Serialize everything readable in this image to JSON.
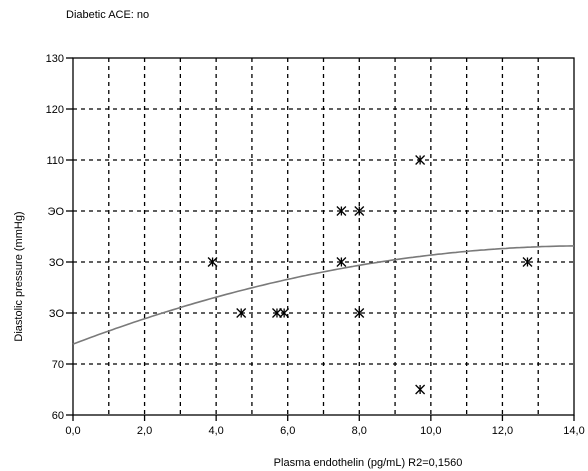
{
  "chart_data": {
    "type": "scatter",
    "title": "Diabetic ACE: no",
    "xlabel": "Plasma endothelin  (pg/mL)  R2=0,1560",
    "ylabel": "Diastolic pressure  (mmHg)",
    "xlim": [
      0,
      14
    ],
    "ylim": [
      60,
      130
    ],
    "x_ticks": [
      0,
      2,
      4,
      6,
      8,
      10,
      12,
      14
    ],
    "x_tick_labels": [
      "0,0",
      "2,0",
      "4,0",
      "6,0",
      "8,0",
      "10,0",
      "12,0",
      "14,0"
    ],
    "y_ticks": [
      60,
      70,
      80,
      90,
      100,
      110,
      120,
      130
    ],
    "y_tick_labels": [
      "60",
      "70",
      "ЗО",
      "ЗО",
      "ЭО",
      "110",
      "120",
      "130"
    ],
    "grid": true,
    "marker": "x-star",
    "points": [
      {
        "x": 3.9,
        "y": 90
      },
      {
        "x": 4.7,
        "y": 80
      },
      {
        "x": 5.7,
        "y": 80
      },
      {
        "x": 5.9,
        "y": 80
      },
      {
        "x": 7.5,
        "y": 100
      },
      {
        "x": 7.5,
        "y": 90
      },
      {
        "x": 8.0,
        "y": 100
      },
      {
        "x": 8.0,
        "y": 80
      },
      {
        "x": 9.7,
        "y": 110
      },
      {
        "x": 9.7,
        "y": 65
      },
      {
        "x": 12.7,
        "y": 90
      }
    ],
    "fit_curve": {
      "type": "quadratic",
      "color": "#7a7a7a",
      "coefficients": {
        "a": -0.0926,
        "b": 2.672,
        "c": 73.9
      }
    }
  }
}
